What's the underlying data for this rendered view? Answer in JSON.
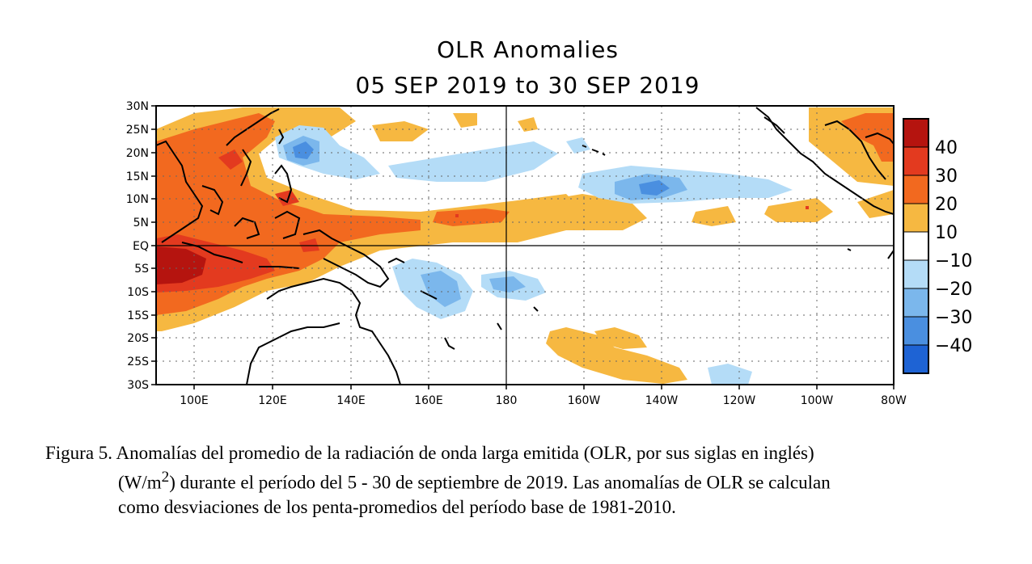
{
  "title": "OLR Anomalies",
  "subtitle": "05 SEP 2019 to 30 SEP 2019",
  "map": {
    "lat_labels": [
      "30N",
      "25N",
      "20N",
      "15N",
      "10N",
      "5N",
      "EQ",
      "5S",
      "10S",
      "15S",
      "20S",
      "25S",
      "30S"
    ],
    "lon_labels": [
      "100E",
      "120E",
      "140E",
      "160E",
      "180",
      "160W",
      "140W",
      "120W",
      "100W",
      "80W"
    ]
  },
  "colorbar": {
    "labels": [
      "40",
      "30",
      "20",
      "10",
      "−10",
      "−20",
      "−30",
      "−40"
    ],
    "colors": [
      "#b5140f",
      "#e33a1f",
      "#f2691f",
      "#f6b841",
      "#ffffff",
      "#b4dcf7",
      "#7bb7ec",
      "#4a8fe0",
      "#1e63d4"
    ]
  },
  "caption": {
    "line1": "Figura 5. Anomalías del promedio de la radiación de onda larga emitida (OLR, por sus siglas en inglés)",
    "line2_pre": "(W/m",
    "line2_sup": "2",
    "line2_post": ") durante el período del 5 - 30 de septiembre de 2019.  Las anomalías de OLR se calculan",
    "line3": "como desviaciones de los penta-promedios del período base de 1981-2010."
  }
}
